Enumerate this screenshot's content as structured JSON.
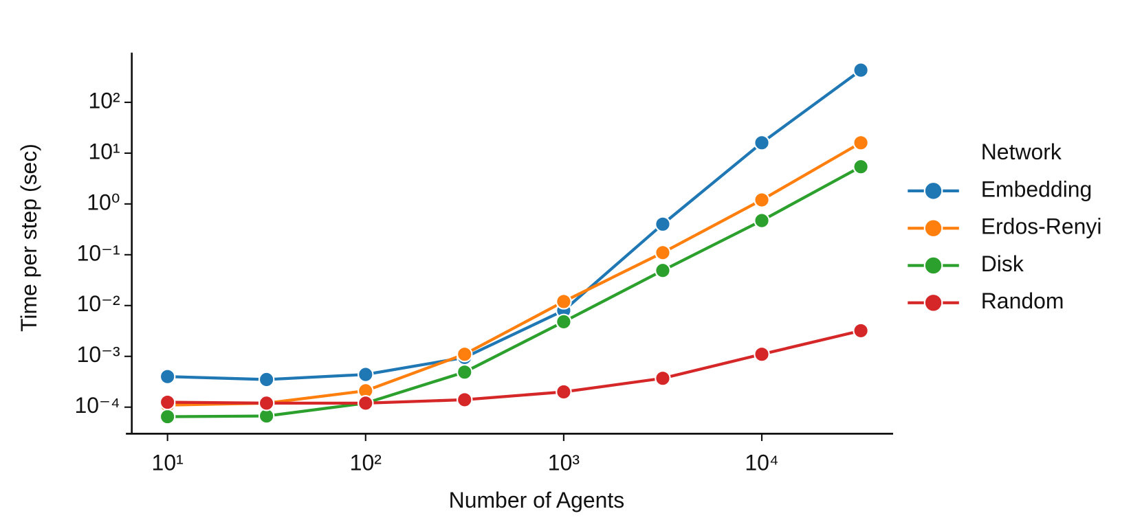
{
  "chart_data": {
    "type": "line",
    "x_label": "Number of Agents",
    "y_label": "Time per step (sec)",
    "legend_title": "Network",
    "legend": "right outside",
    "xscale": "log",
    "yscale": "log",
    "x": [
      10,
      31.6,
      100,
      316,
      1000,
      3162,
      10000,
      31623
    ],
    "series": [
      {
        "name": "Embedding",
        "color": "#1f77b4",
        "values": [
          0.0004,
          0.00035,
          0.00044,
          0.00095,
          0.008,
          0.4,
          16,
          430
        ]
      },
      {
        "name": "Erdos-Renyi",
        "color": "#ff7f0e",
        "values": [
          0.00011,
          0.00012,
          0.00021,
          0.0011,
          0.012,
          0.11,
          1.2,
          16
        ]
      },
      {
        "name": "Disk",
        "color": "#2ca02c",
        "values": [
          6.5e-05,
          6.7e-05,
          0.00012,
          0.00049,
          0.0048,
          0.049,
          0.47,
          5.4
        ]
      },
      {
        "name": "Random",
        "color": "#d62728",
        "values": [
          0.000125,
          0.00012,
          0.00012,
          0.00014,
          0.0002,
          0.00037,
          0.0011,
          0.0032
        ]
      }
    ],
    "xlim": [
      6.6,
      46000
    ],
    "ylim": [
      3e-05,
      950
    ],
    "xticks": [
      {
        "value": 10,
        "label": "10¹"
      },
      {
        "value": 100,
        "label": "10²"
      },
      {
        "value": 1000,
        "label": "10³"
      },
      {
        "value": 10000,
        "label": "10⁴"
      }
    ],
    "yticks": [
      {
        "value": 0.0001,
        "label": "10⁻⁴"
      },
      {
        "value": 0.001,
        "label": "10⁻³"
      },
      {
        "value": 0.01,
        "label": "10⁻²"
      },
      {
        "value": 0.1,
        "label": "10⁻¹"
      },
      {
        "value": 1,
        "label": "10⁰"
      },
      {
        "value": 10,
        "label": "10¹"
      },
      {
        "value": 100,
        "label": "10²"
      }
    ]
  }
}
